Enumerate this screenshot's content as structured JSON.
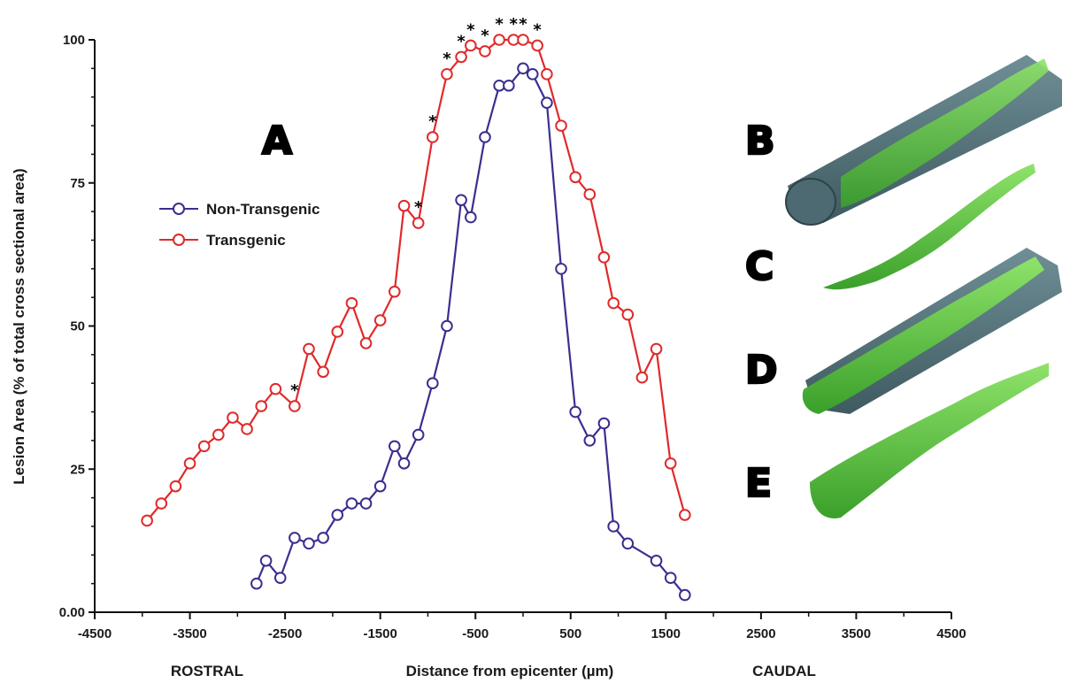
{
  "chart_data": {
    "type": "line",
    "title": "",
    "xlabel": "Distance from epicenter (µm)",
    "ylabel": "Lesion Area (% of total cross sectional area)",
    "xlim": [
      -4500,
      4500
    ],
    "ylim": [
      0,
      100
    ],
    "xticks": [
      "-4500",
      "-3500",
      "-2500",
      "-1500",
      "-500",
      "500",
      "1500",
      "2500",
      "3500",
      "4500"
    ],
    "yticks": [
      "0.00",
      "25",
      "50",
      "75",
      "100"
    ],
    "xtick_values": [
      -4500,
      -3500,
      -2500,
      -1500,
      -500,
      500,
      1500,
      2500,
      3500,
      4500
    ],
    "ytick_values": [
      0,
      25,
      50,
      75,
      100
    ],
    "direction_labels": {
      "left": "ROSTRAL",
      "right": "CAUDAL"
    },
    "legend_placement": "upper-left",
    "series": [
      {
        "name": "Non-Transgenic",
        "color": "#3a2f8f",
        "points": [
          [
            -2800,
            5
          ],
          [
            -2700,
            9
          ],
          [
            -2550,
            6
          ],
          [
            -2400,
            13
          ],
          [
            -2250,
            12
          ],
          [
            -2100,
            13
          ],
          [
            -1950,
            17
          ],
          [
            -1800,
            19
          ],
          [
            -1650,
            19
          ],
          [
            -1500,
            22
          ],
          [
            -1350,
            29
          ],
          [
            -1250,
            26
          ],
          [
            -1100,
            31
          ],
          [
            -950,
            40
          ],
          [
            -800,
            50
          ],
          [
            -650,
            72
          ],
          [
            -550,
            69
          ],
          [
            -400,
            83
          ],
          [
            -250,
            92
          ],
          [
            -150,
            92
          ],
          [
            0,
            95
          ],
          [
            100,
            94
          ],
          [
            250,
            89
          ],
          [
            400,
            60
          ],
          [
            550,
            35
          ],
          [
            700,
            30
          ],
          [
            850,
            33
          ],
          [
            950,
            15
          ],
          [
            1100,
            12
          ],
          [
            1400,
            9
          ],
          [
            1550,
            6
          ],
          [
            1700,
            3
          ]
        ]
      },
      {
        "name": "Transgenic",
        "color": "#e02a2a",
        "points": [
          [
            -3950,
            16
          ],
          [
            -3800,
            19
          ],
          [
            -3650,
            22
          ],
          [
            -3500,
            26
          ],
          [
            -3350,
            29
          ],
          [
            -3200,
            31
          ],
          [
            -3050,
            34
          ],
          [
            -2900,
            32
          ],
          [
            -2750,
            36
          ],
          [
            -2600,
            39
          ],
          [
            -2400,
            36
          ],
          [
            -2250,
            46
          ],
          [
            -2100,
            42
          ],
          [
            -1950,
            49
          ],
          [
            -1800,
            54
          ],
          [
            -1650,
            47
          ],
          [
            -1500,
            51
          ],
          [
            -1350,
            56
          ],
          [
            -1250,
            71
          ],
          [
            -1100,
            68
          ],
          [
            -950,
            83
          ],
          [
            -800,
            94
          ],
          [
            -650,
            97
          ],
          [
            -550,
            99
          ],
          [
            -400,
            98
          ],
          [
            -250,
            100
          ],
          [
            -100,
            100
          ],
          [
            0,
            100
          ],
          [
            150,
            99
          ],
          [
            250,
            94
          ],
          [
            400,
            85
          ],
          [
            550,
            76
          ],
          [
            700,
            73
          ],
          [
            850,
            62
          ],
          [
            950,
            54
          ],
          [
            1100,
            52
          ],
          [
            1250,
            41
          ],
          [
            1400,
            46
          ],
          [
            1550,
            26
          ],
          [
            1700,
            17
          ]
        ]
      }
    ],
    "annotations": [
      {
        "text": "*",
        "x": -2400,
        "y": 36
      },
      {
        "text": "*",
        "x": -1100,
        "y": 68
      },
      {
        "text": "*",
        "x": -950,
        "y": 83
      },
      {
        "text": "*",
        "x": -800,
        "y": 94
      },
      {
        "text": "*",
        "x": -650,
        "y": 97
      },
      {
        "text": "*",
        "x": -550,
        "y": 99
      },
      {
        "text": "*",
        "x": -400,
        "y": 98
      },
      {
        "text": "*",
        "x": -250,
        "y": 100
      },
      {
        "text": "*",
        "x": -100,
        "y": 100
      },
      {
        "text": "*",
        "x": 0,
        "y": 100
      },
      {
        "text": "*",
        "x": 150,
        "y": 99
      }
    ],
    "panel_labels": [
      "A",
      "B",
      "C",
      "D",
      "E"
    ]
  }
}
